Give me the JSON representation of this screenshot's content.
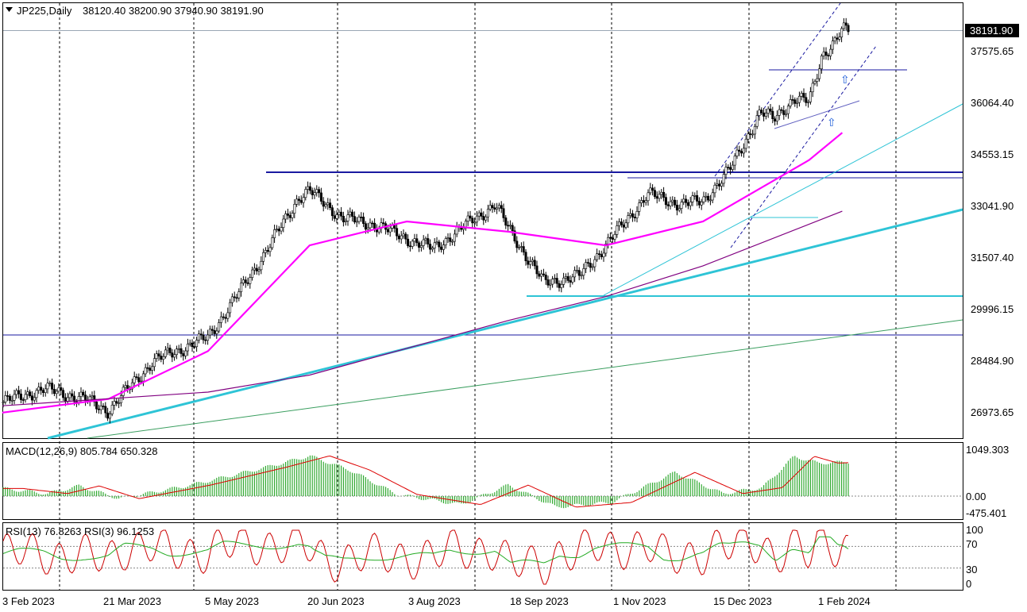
{
  "header": {
    "symbol_label": "JP225,Daily",
    "ohlc_text": "38120.40 38200.90 37940.90 38191.90"
  },
  "colors": {
    "ma_fast": "#ff00ff",
    "ma_slow": "#800080",
    "trend_cyan": "#2ec4d6",
    "channel": "#1a1aa0",
    "macd_hist": "#33aa33",
    "signal": "#dd0000",
    "rsi_fast": "#cc0000",
    "rsi_slow": "#22aa22",
    "bull_body": "#ffffff",
    "bear_body": "#000000"
  },
  "price_axis": {
    "ticks": [
      "37575.65",
      "36064.40",
      "34553.15",
      "33041.90",
      "31507.40",
      "29996.15",
      "28484.90",
      "26973.65"
    ],
    "current_price": "38191.90"
  },
  "date_axis": {
    "labels": [
      "3 Feb 2023",
      "21 Mar 2023",
      "5 May 2023",
      "20 Jun 2023",
      "3 Aug 2023",
      "18 Sep 2023",
      "1 Nov 2023",
      "15 Dec 2023",
      "1 Feb 2024"
    ]
  },
  "macd": {
    "label": "MACD(12,26,9) 805.784 650.328",
    "ticks": [
      "1049.303",
      "0.00",
      "-475.401"
    ]
  },
  "rsi": {
    "label": "RSI(13) 76.8263  RSI(3) 96.1253",
    "ticks": [
      "100",
      "70",
      "30",
      "0"
    ]
  },
  "chart_data": {
    "type": "candlestick",
    "symbol": "JP225",
    "timeframe": "Daily",
    "last_bar": {
      "open": 38120.4,
      "high": 38200.9,
      "low": 37940.9,
      "close": 38191.9
    },
    "ylim": [
      26500,
      38800
    ],
    "x_range": [
      "2023-02-01",
      "2024-03-10"
    ],
    "series": [
      {
        "name": "close",
        "x": [
          "2023-02-01",
          "2023-02-20",
          "2023-03-10",
          "2023-03-21",
          "2023-04-10",
          "2023-05-05",
          "2023-05-20",
          "2023-06-01",
          "2023-06-15",
          "2023-06-20",
          "2023-07-05",
          "2023-07-20",
          "2023-08-03",
          "2023-08-15",
          "2023-09-01",
          "2023-09-12",
          "2023-09-18",
          "2023-10-04",
          "2023-10-20",
          "2023-11-01",
          "2023-11-10",
          "2023-11-20",
          "2023-12-05",
          "2023-12-15",
          "2023-12-27",
          "2024-01-10",
          "2024-01-16",
          "2024-01-25",
          "2024-02-01",
          "2024-02-07",
          "2024-02-12",
          "2024-02-16"
        ],
        "values": [
          27300,
          27700,
          27400,
          27050,
          28500,
          29200,
          30600,
          31800,
          33300,
          33500,
          32700,
          32500,
          32100,
          31800,
          32600,
          33100,
          32400,
          30800,
          31000,
          31900,
          32600,
          33400,
          33100,
          33200,
          34100,
          35800,
          35600,
          36200,
          36100,
          37500,
          37800,
          38191.9
        ]
      },
      {
        "name": "MA fast",
        "x": [
          "2023-02-01",
          "2023-03-21",
          "2023-05-05",
          "2023-06-20",
          "2023-08-03",
          "2023-09-18",
          "2023-11-01",
          "2023-12-15",
          "2024-02-01",
          "2024-02-16"
        ],
        "values": [
          27000,
          27400,
          28800,
          31900,
          32600,
          32300,
          31900,
          32600,
          34400,
          35200
        ]
      },
      {
        "name": "MA slow",
        "x": [
          "2023-02-01",
          "2023-05-05",
          "2023-06-20",
          "2023-09-18",
          "2023-11-01",
          "2023-12-15",
          "2024-02-16"
        ],
        "values": [
          27200,
          27600,
          28100,
          29700,
          30400,
          31300,
          32900
        ]
      }
    ],
    "macd": {
      "value": 805.784,
      "signal": 650.328,
      "ylim": [
        -475.401,
        1049.303
      ]
    },
    "rsi": {
      "rsi13": 76.8263,
      "rsi3": 96.1253,
      "levels": [
        30,
        70
      ]
    }
  }
}
